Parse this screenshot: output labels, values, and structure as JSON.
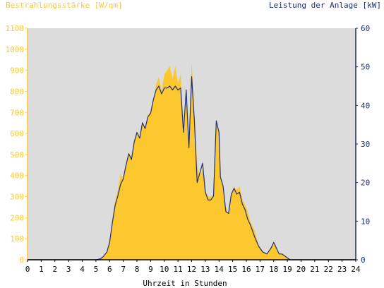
{
  "chart_data": {
    "type": "area",
    "left_axis_title": "Bestrahlungsstärke [W/qm]",
    "right_axis_title": "Leistung der Anlage [kW]",
    "xlabel": "Uhrzeit in Stunden",
    "xlim": [
      0,
      24
    ],
    "x_ticks": [
      "0",
      "1",
      "2",
      "3",
      "4",
      "5",
      "6",
      "7",
      "8",
      "9",
      "10",
      "11",
      "12",
      "13",
      "14",
      "15",
      "16",
      "17",
      "18",
      "19",
      "20",
      "21",
      "22",
      "23",
      "24"
    ],
    "ylim_left": [
      0,
      1100
    ],
    "y_ticks_left": [
      "0",
      "100",
      "200",
      "300",
      "400",
      "500",
      "600",
      "700",
      "800",
      "900",
      "1000",
      "1100"
    ],
    "ylim_right": [
      0,
      60
    ],
    "y_ticks_right": [
      "0",
      "10",
      "20",
      "30",
      "40",
      "50",
      "60"
    ],
    "grid": false,
    "colors": {
      "irradiance": "#fcc82e",
      "power": "#1f2f75",
      "plot_background": "#dcdcdc"
    },
    "series": [
      {
        "axis": "left",
        "style": "area",
        "x": [
          0,
          5,
          5.3,
          5.5,
          5.8,
          6.0,
          6.2,
          6.4,
          6.6,
          6.8,
          7.0,
          7.2,
          7.4,
          7.6,
          7.8,
          8.0,
          8.2,
          8.4,
          8.6,
          8.8,
          9.0,
          9.2,
          9.4,
          9.6,
          9.8,
          10.0,
          10.2,
          10.4,
          10.6,
          10.8,
          11.0,
          11.2,
          11.4,
          11.6,
          11.8,
          12.0,
          12.2,
          12.4,
          12.6,
          12.8,
          13.0,
          13.2,
          13.4,
          13.6,
          13.8,
          14.0,
          14.1,
          14.3,
          14.5,
          14.7,
          14.9,
          15.1,
          15.3,
          15.5,
          15.7,
          15.9,
          16.1,
          16.3,
          16.6,
          16.9,
          17.2,
          17.5,
          17.8,
          18.0,
          18.2,
          18.4,
          18.6,
          18.8,
          19.0,
          19.2,
          24
        ],
        "values": [
          0,
          0,
          5,
          15,
          40,
          90,
          190,
          280,
          330,
          410,
          380,
          450,
          510,
          480,
          570,
          610,
          580,
          650,
          620,
          690,
          700,
          760,
          830,
          870,
          800,
          880,
          900,
          920,
          860,
          920,
          840,
          880,
          600,
          830,
          540,
          940,
          700,
          450,
          400,
          430,
          330,
          300,
          300,
          310,
          650,
          610,
          400,
          350,
          250,
          220,
          310,
          350,
          330,
          350,
          290,
          260,
          230,
          180,
          140,
          70,
          40,
          30,
          60,
          85,
          60,
          30,
          30,
          20,
          10,
          0,
          0
        ]
      },
      {
        "axis": "right",
        "style": "line",
        "x": [
          0,
          5,
          5.3,
          5.5,
          5.8,
          6.0,
          6.2,
          6.4,
          6.6,
          6.8,
          7.0,
          7.2,
          7.4,
          7.6,
          7.8,
          8.0,
          8.2,
          8.4,
          8.6,
          8.8,
          9.0,
          9.2,
          9.4,
          9.6,
          9.8,
          10.0,
          10.2,
          10.4,
          10.6,
          10.8,
          11.0,
          11.2,
          11.4,
          11.6,
          11.8,
          12.0,
          12.2,
          12.4,
          12.6,
          12.8,
          13.0,
          13.2,
          13.4,
          13.6,
          13.8,
          14.0,
          14.1,
          14.3,
          14.5,
          14.7,
          14.9,
          15.1,
          15.3,
          15.5,
          15.7,
          15.9,
          16.1,
          16.3,
          16.6,
          16.9,
          17.2,
          17.5,
          17.8,
          18.0,
          18.2,
          18.4,
          18.6,
          18.8,
          19.0,
          19.2,
          24
        ],
        "values": [
          0,
          0,
          0.2,
          0.7,
          2,
          4.5,
          9.5,
          14,
          16.5,
          19.5,
          21,
          24.5,
          27.5,
          26,
          30.5,
          33,
          31.5,
          35.5,
          34,
          37,
          38,
          41.5,
          44,
          45,
          43,
          44.5,
          44.5,
          45,
          44,
          45,
          44,
          44.5,
          33,
          44,
          29,
          47.5,
          36,
          20,
          22.5,
          25,
          17.5,
          15.5,
          15.5,
          16.5,
          36,
          33,
          21.5,
          19,
          12.5,
          12,
          17,
          18.5,
          17,
          17.5,
          14.5,
          13,
          10.5,
          9,
          6,
          3.5,
          2,
          1.5,
          3,
          4.5,
          3,
          1.5,
          1.5,
          1,
          0.5,
          0,
          0
        ]
      }
    ]
  }
}
